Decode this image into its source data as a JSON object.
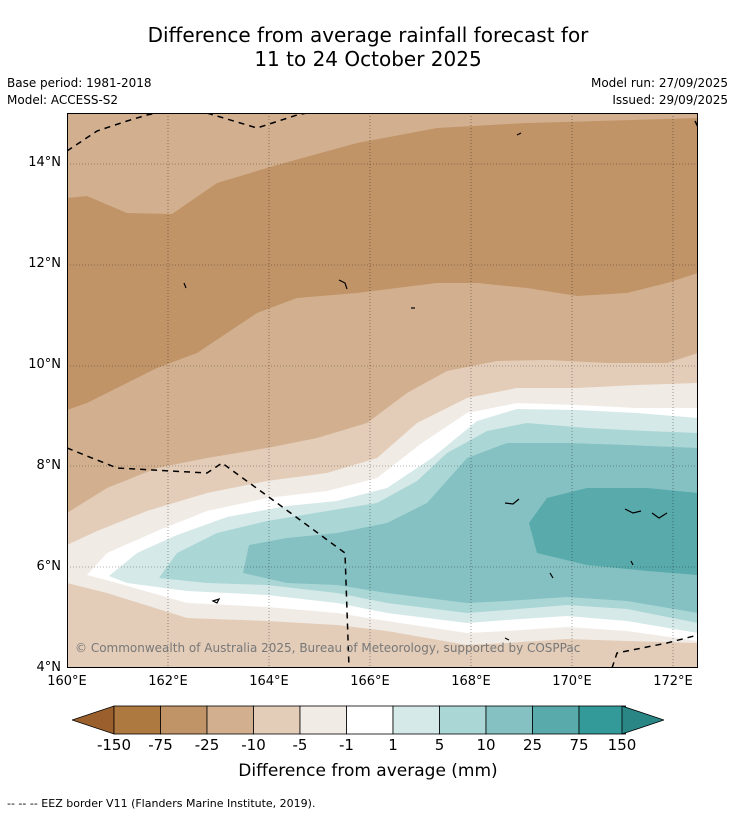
{
  "title": {
    "line1": "Difference from average rainfall forecast for",
    "line2": "11 to 24 October 2025"
  },
  "meta": {
    "base_period": "Base period: 1981-2018",
    "model": "Model: ACCESS-S2",
    "model_run": "Model run: 27/09/2025",
    "issued": "Issued: 29/09/2025"
  },
  "map": {
    "lat_labels": [
      "14°N",
      "12°N",
      "10°N",
      "8°N",
      "6°N",
      "4°N"
    ],
    "lon_labels": [
      "160°E",
      "162°E",
      "164°E",
      "166°E",
      "168°E",
      "170°E",
      "172°E"
    ],
    "copyright": "© Commonwealth of Australia 2025, Bureau of Meteorology, supported by COSPPac"
  },
  "colorbar": {
    "labels": [
      "-150",
      "-75",
      "-25",
      "-10",
      "-5",
      "-1",
      "1",
      "5",
      "10",
      "25",
      "75",
      "150"
    ],
    "colors": [
      "#9a5f2c",
      "#ae7841",
      "#c19468",
      "#d2b08f",
      "#e3cdb9",
      "#f1ebe5",
      "#ffffff",
      "#d5e9e8",
      "#abd6d6",
      "#85c1c2",
      "#58aaab",
      "#349a99",
      "#2a8585"
    ],
    "title": "Difference from average (mm)"
  },
  "legend": {
    "text": "--  --  -- EEZ border V11 (Flanders Marine Institute, 2019)."
  }
}
